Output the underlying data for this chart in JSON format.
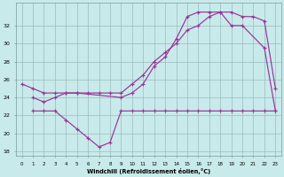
{
  "background_color": "#c8eaea",
  "grid_color": "#9bbcbc",
  "line_color": "#993399",
  "xlabel": "Windchill (Refroidissement éolien,°C)",
  "ylim": [
    17.5,
    34.5
  ],
  "yticks": [
    18,
    20,
    22,
    24,
    26,
    28,
    30,
    32
  ],
  "xlim": [
    -0.5,
    23.5
  ],
  "lineA_x": [
    0,
    1,
    2,
    3,
    4,
    5,
    9,
    10,
    11,
    12,
    13,
    14,
    15,
    16,
    17,
    18,
    19,
    20,
    21,
    22,
    23
  ],
  "lineA_y": [
    25.5,
    25.0,
    24.5,
    24.5,
    24.5,
    24.5,
    24.0,
    24.5,
    25.5,
    27.5,
    28.5,
    30.5,
    33.0,
    33.5,
    33.5,
    33.5,
    33.5,
    33.0,
    33.0,
    32.5,
    25.0
  ],
  "lineB_x": [
    1,
    2,
    3,
    4,
    5,
    6,
    7,
    8,
    9,
    10,
    11,
    12,
    13,
    14,
    15,
    16,
    17,
    18,
    19,
    20,
    22,
    23
  ],
  "lineB_y": [
    24.0,
    23.5,
    24.0,
    24.5,
    24.5,
    24.5,
    24.5,
    24.5,
    24.5,
    25.5,
    26.5,
    28.0,
    29.0,
    30.0,
    31.5,
    32.0,
    33.0,
    33.5,
    32.0,
    32.0,
    29.5,
    22.5
  ],
  "lineC_x": [
    1,
    2,
    3,
    4,
    5,
    6,
    7,
    8,
    9,
    10,
    11,
    12,
    13,
    14,
    15,
    16,
    17,
    18,
    19,
    20,
    21,
    22,
    23
  ],
  "lineC_y": [
    22.5,
    22.5,
    22.5,
    21.5,
    20.5,
    19.5,
    18.5,
    19.0,
    22.5,
    22.5,
    22.5,
    22.5,
    22.5,
    22.5,
    22.5,
    22.5,
    22.5,
    22.5,
    22.5,
    22.5,
    22.5,
    22.5,
    22.5
  ]
}
